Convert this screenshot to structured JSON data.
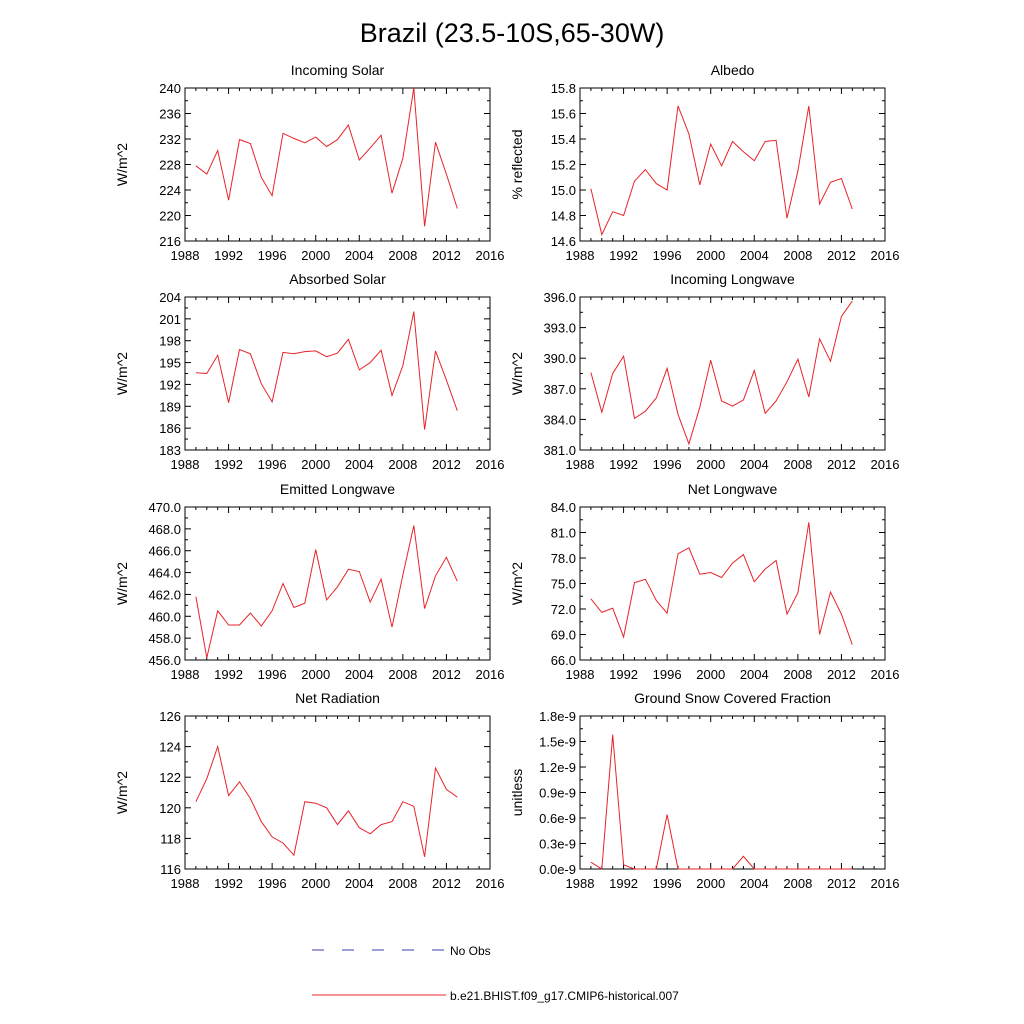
{
  "figure_title": "Brazil (23.5-10S,65-30W)",
  "legend": [
    {
      "label": "No Obs",
      "color": "#3b3bb0",
      "dashed": true
    },
    {
      "label": "b.e21.BHIST.f09_g17.CMIP6-historical.007",
      "color": "#e8232a",
      "dashed": false
    }
  ],
  "chart_data": [
    {
      "type": "line",
      "title": "Incoming Solar",
      "ylabel": "W/m^2",
      "xlim": [
        1988,
        2016
      ],
      "xticks": [
        "1988",
        "1992",
        "1996",
        "2000",
        "2004",
        "2008",
        "2012",
        "2016"
      ],
      "ylim": [
        216,
        240
      ],
      "yticks": [
        "216",
        "220",
        "224",
        "228",
        "232",
        "236",
        "240"
      ],
      "x": [
        1989,
        1990,
        1991,
        1992,
        1993,
        1994,
        1995,
        1996,
        1997,
        1998,
        1999,
        2000,
        2001,
        2002,
        2003,
        2004,
        2005,
        2006,
        2007,
        2008,
        2009,
        2010,
        2011,
        2012,
        2013
      ],
      "series": [
        {
          "name": "b.e21.BHIST.f09_g17.CMIP6-historical.007",
          "color": "#e8232a",
          "values": [
            227.8,
            226.5,
            230.2,
            222.4,
            231.9,
            231.3,
            226.0,
            223.1,
            232.9,
            232.1,
            231.4,
            232.3,
            230.8,
            231.9,
            234.2,
            228.7,
            230.6,
            232.6,
            223.5,
            229.0,
            240.0,
            218.3,
            231.5,
            226.5,
            221.1
          ]
        }
      ]
    },
    {
      "type": "line",
      "title": "Albedo",
      "ylabel": "% reflected",
      "xlim": [
        1988,
        2016
      ],
      "xticks": [
        "1988",
        "1992",
        "1996",
        "2000",
        "2004",
        "2008",
        "2012",
        "2016"
      ],
      "ylim": [
        14.6,
        15.8
      ],
      "yticks": [
        "14.6",
        "14.8",
        "15.0",
        "15.2",
        "15.4",
        "15.6",
        "15.8"
      ],
      "x": [
        1989,
        1990,
        1991,
        1992,
        1993,
        1994,
        1995,
        1996,
        1997,
        1998,
        1999,
        2000,
        2001,
        2002,
        2003,
        2004,
        2005,
        2006,
        2007,
        2008,
        2009,
        2010,
        2011,
        2012,
        2013
      ],
      "series": [
        {
          "name": "b.e21.BHIST.f09_g17.CMIP6-historical.007",
          "color": "#e8232a",
          "values": [
            15.01,
            14.65,
            14.83,
            14.8,
            15.07,
            15.16,
            15.05,
            15.0,
            15.66,
            15.44,
            15.04,
            15.36,
            15.19,
            15.38,
            15.3,
            15.23,
            15.38,
            15.39,
            14.78,
            15.15,
            15.66,
            14.89,
            15.06,
            15.09,
            14.85
          ]
        }
      ]
    },
    {
      "type": "line",
      "title": "Absorbed Solar",
      "ylabel": "W/m^2",
      "xlim": [
        1988,
        2016
      ],
      "xticks": [
        "1988",
        "1992",
        "1996",
        "2000",
        "2004",
        "2008",
        "2012",
        "2016"
      ],
      "ylim": [
        183,
        204
      ],
      "yticks": [
        "183",
        "186",
        "189",
        "192",
        "195",
        "198",
        "201",
        "204"
      ],
      "x": [
        1989,
        1990,
        1991,
        1992,
        1993,
        1994,
        1995,
        1996,
        1997,
        1998,
        1999,
        2000,
        2001,
        2002,
        2003,
        2004,
        2005,
        2006,
        2007,
        2008,
        2009,
        2010,
        2011,
        2012,
        2013
      ],
      "series": [
        {
          "name": "b.e21.BHIST.f09_g17.CMIP6-historical.007",
          "color": "#e8232a",
          "values": [
            193.6,
            193.5,
            196.0,
            189.5,
            196.8,
            196.2,
            192.1,
            189.6,
            196.4,
            196.2,
            196.5,
            196.6,
            195.8,
            196.3,
            198.2,
            194.0,
            195.0,
            196.7,
            190.5,
            194.6,
            202.0,
            185.8,
            196.6,
            192.6,
            188.4
          ]
        }
      ]
    },
    {
      "type": "line",
      "title": "Incoming Longwave",
      "ylabel": "W/m^2",
      "xlim": [
        1988,
        2016
      ],
      "xticks": [
        "1988",
        "1992",
        "1996",
        "2000",
        "2004",
        "2008",
        "2012",
        "2016"
      ],
      "ylim": [
        381.0,
        396.0
      ],
      "yticks": [
        "381.0",
        "384.0",
        "387.0",
        "390.0",
        "393.0",
        "396.0"
      ],
      "x": [
        1989,
        1990,
        1991,
        1992,
        1993,
        1994,
        1995,
        1996,
        1997,
        1998,
        1999,
        2000,
        2001,
        2002,
        2003,
        2004,
        2005,
        2006,
        2007,
        2008,
        2009,
        2010,
        2011,
        2012,
        2013
      ],
      "series": [
        {
          "name": "b.e21.BHIST.f09_g17.CMIP6-historical.007",
          "color": "#e8232a",
          "values": [
            388.6,
            384.7,
            388.5,
            390.2,
            384.1,
            384.8,
            386.1,
            389.0,
            384.5,
            381.6,
            385.2,
            389.8,
            385.8,
            385.3,
            385.9,
            388.8,
            384.6,
            385.8,
            387.7,
            389.9,
            386.2,
            391.9,
            389.7,
            394.1,
            395.6
          ]
        }
      ]
    },
    {
      "type": "line",
      "title": "Emitted Longwave",
      "ylabel": "W/m^2",
      "xlim": [
        1988,
        2016
      ],
      "xticks": [
        "1988",
        "1992",
        "1996",
        "2000",
        "2004",
        "2008",
        "2012",
        "2016"
      ],
      "ylim": [
        456.0,
        470.0
      ],
      "yticks": [
        "456.0",
        "458.0",
        "460.0",
        "462.0",
        "464.0",
        "466.0",
        "468.0",
        "470.0"
      ],
      "x": [
        1989,
        1990,
        1991,
        1992,
        1993,
        1994,
        1995,
        1996,
        1997,
        1998,
        1999,
        2000,
        2001,
        2002,
        2003,
        2004,
        2005,
        2006,
        2007,
        2008,
        2009,
        2010,
        2011,
        2012,
        2013
      ],
      "series": [
        {
          "name": "b.e21.BHIST.f09_g17.CMIP6-historical.007",
          "color": "#e8232a",
          "values": [
            461.8,
            456.2,
            460.5,
            459.2,
            459.2,
            460.3,
            459.1,
            460.5,
            463.0,
            460.8,
            461.2,
            466.1,
            461.5,
            462.7,
            464.3,
            464.1,
            461.3,
            463.4,
            459.0,
            463.8,
            468.3,
            460.7,
            463.7,
            465.4,
            463.2
          ]
        }
      ]
    },
    {
      "type": "line",
      "title": "Net Longwave",
      "ylabel": "W/m^2",
      "xlim": [
        1988,
        2016
      ],
      "xticks": [
        "1988",
        "1992",
        "1996",
        "2000",
        "2004",
        "2008",
        "2012",
        "2016"
      ],
      "ylim": [
        66.0,
        84.0
      ],
      "yticks": [
        "66.0",
        "69.0",
        "72.0",
        "75.0",
        "78.0",
        "81.0",
        "84.0"
      ],
      "x": [
        1989,
        1990,
        1991,
        1992,
        1993,
        1994,
        1995,
        1996,
        1997,
        1998,
        1999,
        2000,
        2001,
        2002,
        2003,
        2004,
        2005,
        2006,
        2007,
        2008,
        2009,
        2010,
        2011,
        2012,
        2013
      ],
      "series": [
        {
          "name": "b.e21.BHIST.f09_g17.CMIP6-historical.007",
          "color": "#e8232a",
          "values": [
            73.2,
            71.6,
            72.1,
            68.7,
            75.1,
            75.5,
            73.0,
            71.5,
            78.5,
            79.2,
            76.1,
            76.3,
            75.7,
            77.4,
            78.4,
            75.2,
            76.7,
            77.7,
            71.4,
            73.9,
            82.2,
            69.0,
            74.0,
            71.4,
            67.8
          ]
        }
      ]
    },
    {
      "type": "line",
      "title": "Net Radiation",
      "ylabel": "W/m^2",
      "xlim": [
        1988,
        2016
      ],
      "xticks": [
        "1988",
        "1992",
        "1996",
        "2000",
        "2004",
        "2008",
        "2012",
        "2016"
      ],
      "ylim": [
        116,
        126
      ],
      "yticks": [
        "116",
        "118",
        "120",
        "122",
        "124",
        "126"
      ],
      "x": [
        1989,
        1990,
        1991,
        1992,
        1993,
        1994,
        1995,
        1996,
        1997,
        1998,
        1999,
        2000,
        2001,
        2002,
        2003,
        2004,
        2005,
        2006,
        2007,
        2008,
        2009,
        2010,
        2011,
        2012,
        2013
      ],
      "series": [
        {
          "name": "b.e21.BHIST.f09_g17.CMIP6-historical.007",
          "color": "#e8232a",
          "values": [
            120.4,
            121.9,
            124.0,
            120.8,
            121.7,
            120.6,
            119.1,
            118.1,
            117.7,
            116.9,
            120.4,
            120.3,
            120.0,
            118.9,
            119.8,
            118.7,
            118.3,
            118.9,
            119.1,
            120.4,
            120.1,
            116.8,
            122.6,
            121.2,
            120.7
          ]
        }
      ]
    },
    {
      "type": "line",
      "title": "Ground Snow Covered Fraction",
      "ylabel": "unitless",
      "xlim": [
        1988,
        2016
      ],
      "xticks": [
        "1988",
        "1992",
        "1996",
        "2000",
        "2004",
        "2008",
        "2012",
        "2016"
      ],
      "ylim": [
        0,
        1.8
      ],
      "yticks": [
        "0.0e-9",
        "0.3e-9",
        "0.6e-9",
        "0.9e-9",
        "1.2e-9",
        "1.5e-9",
        "1.8e-9"
      ],
      "yunit_note": "values x 1e-9",
      "x": [
        1989,
        1990,
        1991,
        1992,
        1993,
        1994,
        1995,
        1996,
        1997,
        1998,
        1999,
        2000,
        2001,
        2002,
        2003,
        2004,
        2005,
        2006,
        2007,
        2008,
        2009,
        2010,
        2011,
        2012,
        2013
      ],
      "series": [
        {
          "name": "b.e21.BHIST.f09_g17.CMIP6-historical.007",
          "color": "#e8232a",
          "values": [
            0.08,
            0.0,
            1.58,
            0.05,
            0.0,
            0.0,
            0.0,
            0.64,
            0.0,
            0.0,
            0.0,
            0.0,
            0.0,
            0.0,
            0.15,
            0.0,
            0.0,
            0.0,
            0.0,
            0.0,
            0.0,
            0.0,
            0.0,
            0.0,
            0.0
          ]
        }
      ]
    }
  ]
}
